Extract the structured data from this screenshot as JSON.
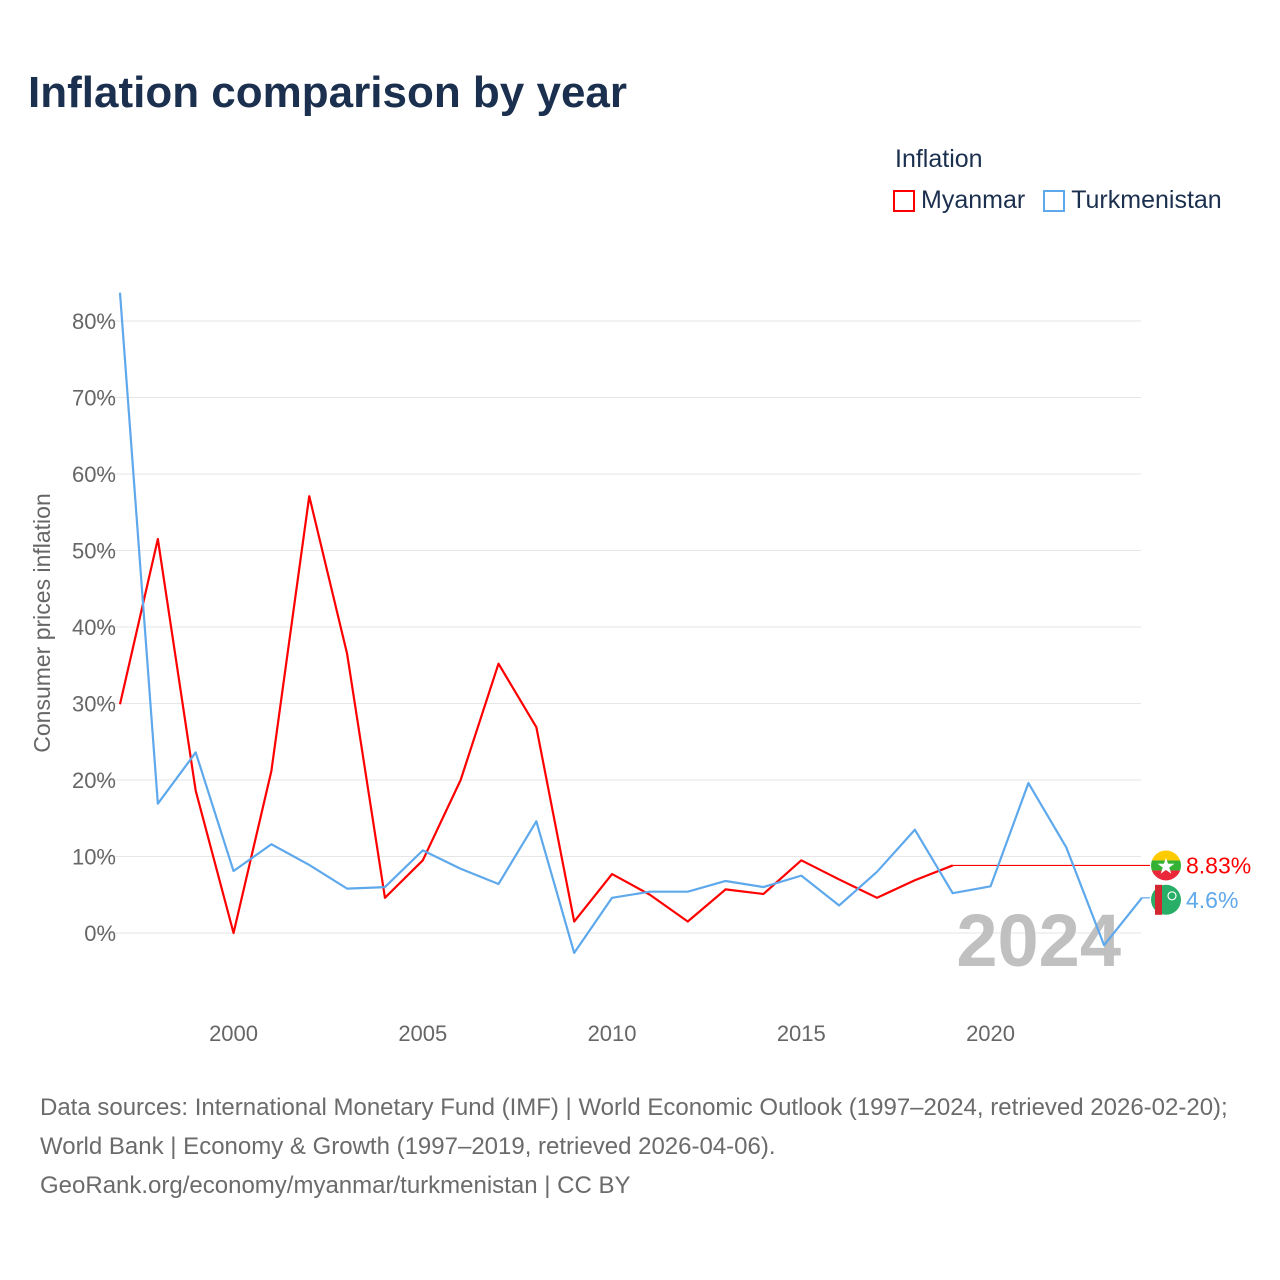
{
  "title": "Inflation comparison by year",
  "legend_title": "Inflation",
  "footer": {
    "sources": "Data sources: International Monetary Fund (IMF) | World Economic Outlook (1997–2024, retrieved 2026-02-20); World Bank | Economy & Growth (1997–2019, retrieved 2026-04-06).",
    "credit": "GeoRank.org/economy/myanmar/turkmenistan | CC BY"
  },
  "chart_data": {
    "type": "line",
    "title": "Inflation comparison by year",
    "xlabel": "",
    "ylabel": "Consumer prices inflation",
    "xlim": [
      1997,
      2024
    ],
    "ylim": [
      -10,
      85
    ],
    "x_ticks": [
      2000,
      2005,
      2010,
      2015,
      2020
    ],
    "y_ticks": [
      0,
      10,
      20,
      30,
      40,
      50,
      60,
      70,
      80
    ],
    "y_tick_labels": [
      "0%",
      "10%",
      "20%",
      "30%",
      "40%",
      "50%",
      "60%",
      "70%",
      "80%"
    ],
    "year_watermark": "2024",
    "legend_position": "top-right",
    "series": [
      {
        "name": "Myanmar",
        "color": "#ff0000",
        "end_label": "8.83%",
        "end_value": 8.83,
        "x": [
          1997,
          1998,
          1999,
          2000,
          2001,
          2002,
          2003,
          2004,
          2005,
          2006,
          2007,
          2008,
          2009,
          2010,
          2011,
          2012,
          2013,
          2014,
          2015,
          2016,
          2017,
          2018,
          2019
        ],
        "values": [
          29.9,
          51.5,
          18.6,
          0.0,
          21.2,
          57.1,
          36.5,
          4.6,
          9.5,
          20.0,
          35.2,
          26.9,
          1.5,
          7.7,
          5.0,
          1.5,
          5.7,
          5.1,
          9.5,
          7.0,
          4.6,
          6.9,
          8.83
        ]
      },
      {
        "name": "Turkmenistan",
        "color": "#5ea8ec",
        "end_label": "4.6%",
        "end_value": 4.6,
        "x": [
          1997,
          1998,
          1999,
          2000,
          2001,
          2002,
          2003,
          2004,
          2005,
          2006,
          2007,
          2008,
          2009,
          2010,
          2011,
          2012,
          2013,
          2014,
          2015,
          2016,
          2017,
          2018,
          2019,
          2020,
          2021,
          2022,
          2023,
          2024
        ],
        "values": [
          83.7,
          16.9,
          23.6,
          8.1,
          11.6,
          8.9,
          5.8,
          6.0,
          10.8,
          8.4,
          6.4,
          14.6,
          -2.6,
          4.6,
          5.4,
          5.4,
          6.8,
          6.0,
          7.5,
          3.6,
          8.0,
          13.5,
          5.2,
          6.1,
          19.6,
          11.2,
          -1.6,
          4.6
        ]
      }
    ]
  }
}
